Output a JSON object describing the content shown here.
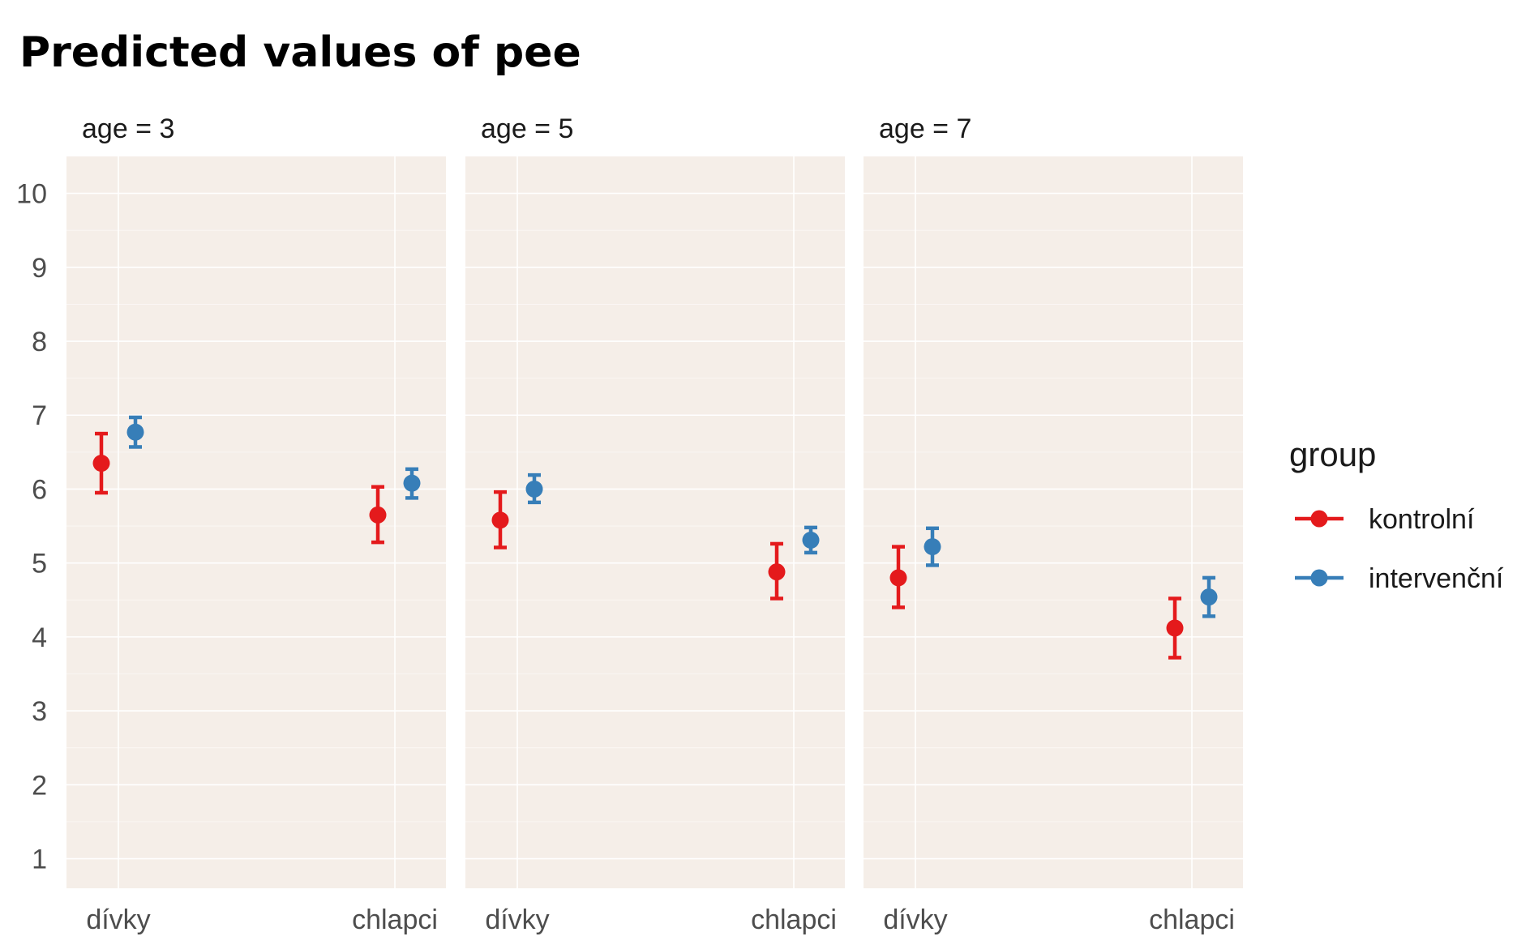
{
  "chart_data": {
    "type": "scatter",
    "title": "Predicted values of pee",
    "xlabel": "",
    "ylabel": "",
    "categories": [
      "dívky",
      "chlapci"
    ],
    "ylim": [
      0.6,
      10.5
    ],
    "yticks": [
      "1",
      "2",
      "3",
      "4",
      "5",
      "6",
      "7",
      "8",
      "9",
      "10"
    ],
    "grid": true,
    "background": "#f5eee8",
    "legend": {
      "title": "group",
      "position": "right"
    },
    "facets": [
      {
        "label": "age = 3",
        "series": [
          {
            "name": "kontrolní",
            "color": "#e41a1c",
            "estimate": [
              6.35,
              5.65
            ],
            "lower": [
              5.95,
              5.28
            ],
            "upper": [
              6.75,
              6.03
            ]
          },
          {
            "name": "intervenční",
            "color": "#377eb8",
            "estimate": [
              6.77,
              6.08
            ],
            "lower": [
              6.57,
              5.88
            ],
            "upper": [
              6.97,
              6.27
            ]
          }
        ]
      },
      {
        "label": "age = 5",
        "series": [
          {
            "name": "kontrolní",
            "color": "#e41a1c",
            "estimate": [
              5.58,
              4.88
            ],
            "lower": [
              5.21,
              4.52
            ],
            "upper": [
              5.96,
              5.26
            ]
          },
          {
            "name": "intervenční",
            "color": "#377eb8",
            "estimate": [
              6.0,
              5.31
            ],
            "lower": [
              5.82,
              5.14
            ],
            "upper": [
              6.19,
              5.48
            ]
          }
        ]
      },
      {
        "label": "age = 7",
        "series": [
          {
            "name": "kontrolní",
            "color": "#e41a1c",
            "estimate": [
              4.8,
              4.12
            ],
            "lower": [
              4.4,
              3.72
            ],
            "upper": [
              5.22,
              4.52
            ]
          },
          {
            "name": "intervenční",
            "color": "#377eb8",
            "estimate": [
              5.22,
              4.54
            ],
            "lower": [
              4.97,
              4.28
            ],
            "upper": [
              5.47,
              4.8
            ]
          }
        ]
      }
    ]
  }
}
